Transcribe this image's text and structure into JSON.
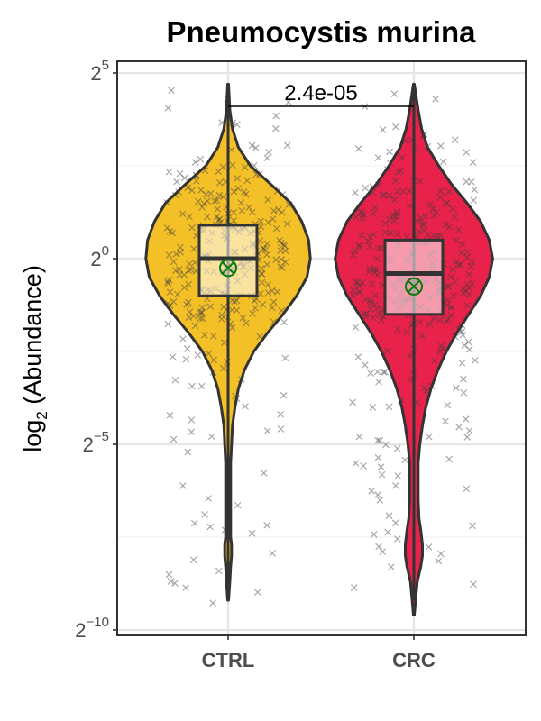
{
  "chart_data": {
    "type": "violin",
    "title": "Pneumocystis murina",
    "ylabel": "log2 (Abundance)",
    "ylabel_parts": {
      "base": "log",
      "sub": "2",
      "rest": " (Abundance)"
    },
    "y_scale": "log2",
    "y_ticks": [
      {
        "exp": 5,
        "label_base": "2",
        "label_exp": "5"
      },
      {
        "exp": 0,
        "label_base": "2",
        "label_exp": "0"
      },
      {
        "exp": -5,
        "label_base": "2",
        "label_exp": "−5"
      },
      {
        "exp": -10,
        "label_base": "2",
        "label_exp": "−10"
      }
    ],
    "ylim_log2": [
      -10.2,
      5.1
    ],
    "grid": true,
    "categories": [
      "CTRL",
      "CRC"
    ],
    "comparison": {
      "label": "2.4e-05",
      "groups": [
        "CTRL",
        "CRC"
      ]
    },
    "series": [
      {
        "category": "CTRL",
        "color": "#F4C028",
        "box_log2": {
          "q1": -1.0,
          "median": 0.0,
          "q3": 0.9
        },
        "mean_log2": -0.25,
        "range_log2": [
          -9.2,
          4.7
        ],
        "violin_profile": [
          [
            4.7,
            0.5
          ],
          [
            4.0,
            2
          ],
          [
            3.5,
            5
          ],
          [
            3.0,
            12
          ],
          [
            2.5,
            26
          ],
          [
            2.0,
            50
          ],
          [
            1.5,
            73
          ],
          [
            1.0,
            86
          ],
          [
            0.5,
            94
          ],
          [
            0.0,
            96
          ],
          [
            -0.5,
            92
          ],
          [
            -1.0,
            80
          ],
          [
            -1.5,
            64
          ],
          [
            -2.0,
            46
          ],
          [
            -2.5,
            30
          ],
          [
            -3.0,
            19
          ],
          [
            -3.5,
            12
          ],
          [
            -4.0,
            8
          ],
          [
            -4.5,
            5
          ],
          [
            -5.0,
            4
          ],
          [
            -5.5,
            3
          ],
          [
            -6.0,
            3
          ],
          [
            -6.5,
            3
          ],
          [
            -7.0,
            3
          ],
          [
            -7.5,
            3
          ],
          [
            -7.7,
            4
          ],
          [
            -8.0,
            4
          ],
          [
            -8.3,
            3
          ],
          [
            -8.7,
            2
          ],
          [
            -9.2,
            0.5
          ]
        ]
      },
      {
        "category": "CRC",
        "color": "#E8224A",
        "box_log2": {
          "q1": -1.5,
          "median": -0.4,
          "q3": 0.5
        },
        "mean_log2": -0.75,
        "range_log2": [
          -9.6,
          4.7
        ],
        "violin_profile": [
          [
            4.7,
            0.5
          ],
          [
            4.0,
            5
          ],
          [
            3.5,
            9
          ],
          [
            3.0,
            16
          ],
          [
            2.5,
            29
          ],
          [
            2.0,
            44
          ],
          [
            1.5,
            62
          ],
          [
            1.0,
            78
          ],
          [
            0.5,
            88
          ],
          [
            0.0,
            92
          ],
          [
            -0.5,
            88
          ],
          [
            -1.0,
            78
          ],
          [
            -1.5,
            64
          ],
          [
            -2.0,
            50
          ],
          [
            -2.5,
            38
          ],
          [
            -3.0,
            28
          ],
          [
            -3.5,
            20
          ],
          [
            -4.0,
            14
          ],
          [
            -4.5,
            10
          ],
          [
            -5.0,
            7
          ],
          [
            -5.5,
            5
          ],
          [
            -6.0,
            5
          ],
          [
            -6.5,
            5
          ],
          [
            -7.0,
            6
          ],
          [
            -7.3,
            8
          ],
          [
            -7.7,
            10
          ],
          [
            -8.0,
            10
          ],
          [
            -8.3,
            8
          ],
          [
            -8.7,
            4
          ],
          [
            -9.2,
            2
          ],
          [
            -9.6,
            0.5
          ]
        ]
      }
    ]
  }
}
